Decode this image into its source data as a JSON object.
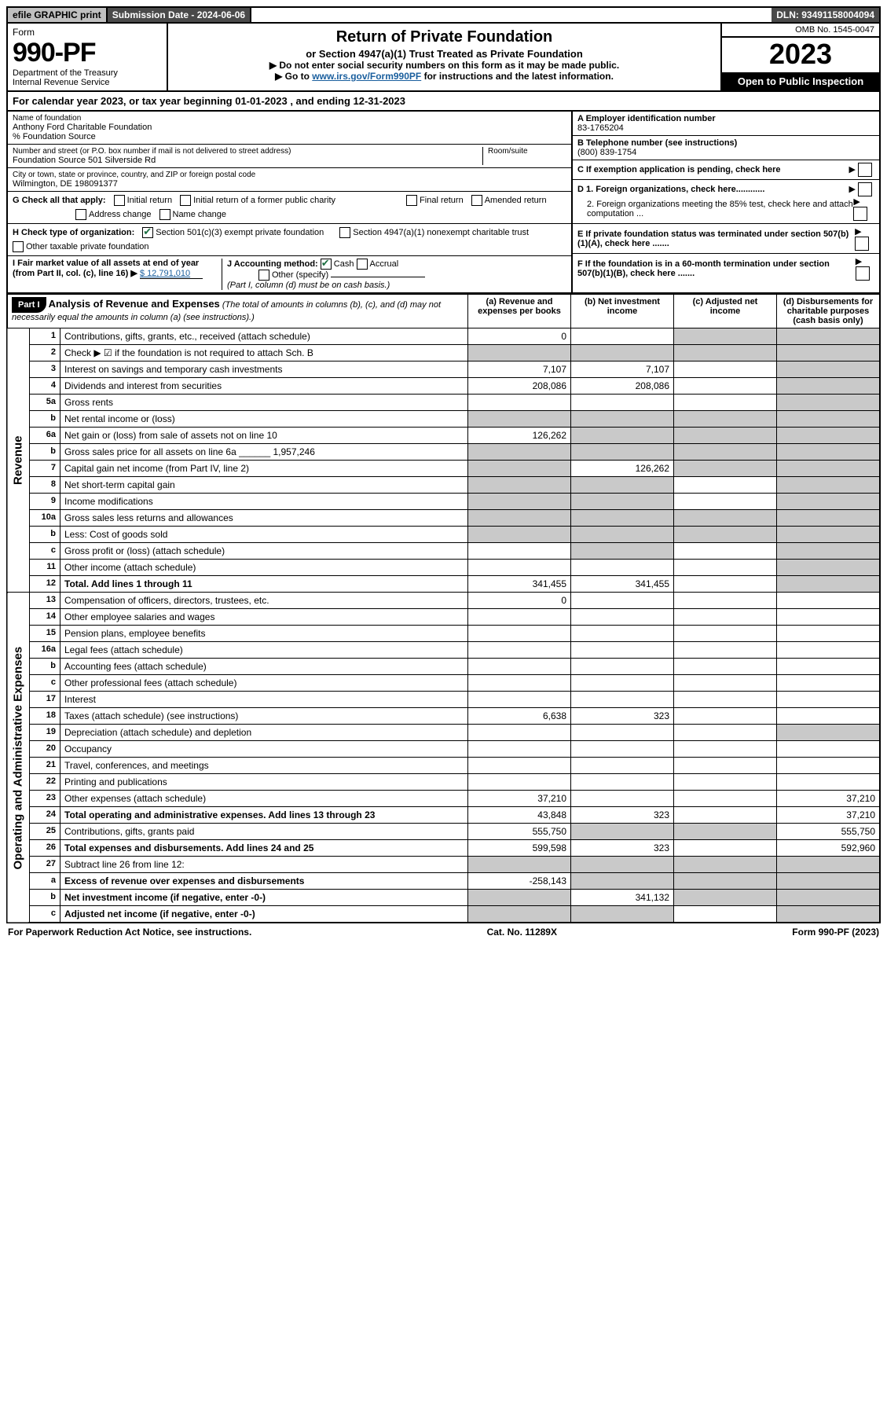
{
  "topbar": {
    "efile": "efile GRAPHIC print",
    "submission": "Submission Date - 2024-06-06",
    "dln": "DLN: 93491158004094"
  },
  "header": {
    "form_label": "Form",
    "form_no": "990-PF",
    "dept": "Department of the Treasury\nInternal Revenue Service",
    "title": "Return of Private Foundation",
    "subtitle": "or Section 4947(a)(1) Trust Treated as Private Foundation",
    "note1": "▶ Do not enter social security numbers on this form as it may be made public.",
    "note2_prefix": "▶ Go to ",
    "note2_link": "www.irs.gov/Form990PF",
    "note2_suffix": " for instructions and the latest information.",
    "omb": "OMB No. 1545-0047",
    "year": "2023",
    "open": "Open to Public Inspection"
  },
  "cal_year": "For calendar year 2023, or tax year beginning 01-01-2023                         , and ending 12-31-2023",
  "info": {
    "name_label": "Name of foundation",
    "name": "Anthony Ford Charitable Foundation",
    "care_of": "% Foundation Source",
    "street_label": "Number and street (or P.O. box number if mail is not delivered to street address)",
    "street": "Foundation Source 501 Silverside Rd",
    "room_label": "Room/suite",
    "city_label": "City or town, state or province, country, and ZIP or foreign postal code",
    "city": "Wilmington, DE  198091377",
    "ein_label": "A Employer identification number",
    "ein": "83-1765204",
    "phone_label": "B Telephone number (see instructions)",
    "phone": "(800) 839-1754",
    "c_label": "C If exemption application is pending, check here",
    "d1_label": "D 1. Foreign organizations, check here............",
    "d2_label": "2. Foreign organizations meeting the 85% test, check here and attach computation ...",
    "e_label": "E If private foundation status was terminated under section 507(b)(1)(A), check here .......",
    "f_label": "F If the foundation is in a 60-month termination under section 507(b)(1)(B), check here .......",
    "g_label": "G Check all that apply:",
    "g_opts": [
      "Initial return",
      "Initial return of a former public charity",
      "Final return",
      "Amended return",
      "Address change",
      "Name change"
    ],
    "h_label": "H Check type of organization:",
    "h_opt1": "Section 501(c)(3) exempt private foundation",
    "h_opt2a": "Section 4947(a)(1) nonexempt charitable trust",
    "h_opt2b": "Other taxable private foundation",
    "i_label": "I Fair market value of all assets at end of year (from Part II, col. (c), line 16) ▶",
    "i_value": "$  12,791,010",
    "j_label": "J Accounting method:",
    "j_opts": [
      "Cash",
      "Accrual",
      "Other (specify)"
    ],
    "j_note": "(Part I, column (d) must be on cash basis.)"
  },
  "part1": {
    "label": "Part I",
    "title": "Analysis of Revenue and Expenses",
    "title_note": "(The total of amounts in columns (b), (c), and (d) may not necessarily equal the amounts in column (a) (see instructions).)",
    "cols": {
      "a": "(a) Revenue and expenses per books",
      "b": "(b) Net investment income",
      "c": "(c) Adjusted net income",
      "d": "(d) Disbursements for charitable purposes (cash basis only)"
    }
  },
  "sidebars": {
    "revenue": "Revenue",
    "expenses": "Operating and Administrative Expenses"
  },
  "rows": [
    {
      "n": "1",
      "d": "Contributions, gifts, grants, etc., received (attach schedule)",
      "a": "0",
      "c_grey": true,
      "d_grey": true
    },
    {
      "n": "2",
      "d": "Check ▶ ☑ if the foundation is not required to attach Sch. B",
      "a_grey": true,
      "b_grey": true,
      "c_grey": true,
      "d_grey": true
    },
    {
      "n": "3",
      "d": "Interest on savings and temporary cash investments",
      "a": "7,107",
      "b": "7,107",
      "d_grey": true
    },
    {
      "n": "4",
      "d": "Dividends and interest from securities",
      "a": "208,086",
      "b": "208,086",
      "d_grey": true
    },
    {
      "n": "5a",
      "d": "Gross rents",
      "d_grey": true
    },
    {
      "n": "b",
      "d": "Net rental income or (loss)",
      "a_grey": true,
      "b_grey": true,
      "c_grey": true,
      "d_grey": true
    },
    {
      "n": "6a",
      "d": "Net gain or (loss) from sale of assets not on line 10",
      "a": "126,262",
      "b_grey": true,
      "c_grey": true,
      "d_grey": true
    },
    {
      "n": "b",
      "d": "Gross sales price for all assets on line 6a ______ 1,957,246",
      "a_grey": true,
      "b_grey": true,
      "c_grey": true,
      "d_grey": true
    },
    {
      "n": "7",
      "d": "Capital gain net income (from Part IV, line 2)",
      "a_grey": true,
      "b": "126,262",
      "c_grey": true,
      "d_grey": true
    },
    {
      "n": "8",
      "d": "Net short-term capital gain",
      "a_grey": true,
      "b_grey": true,
      "d_grey": true
    },
    {
      "n": "9",
      "d": "Income modifications",
      "a_grey": true,
      "b_grey": true,
      "d_grey": true
    },
    {
      "n": "10a",
      "d": "Gross sales less returns and allowances",
      "a_grey": true,
      "b_grey": true,
      "c_grey": true,
      "d_grey": true
    },
    {
      "n": "b",
      "d": "Less: Cost of goods sold",
      "a_grey": true,
      "b_grey": true,
      "c_grey": true,
      "d_grey": true
    },
    {
      "n": "c",
      "d": "Gross profit or (loss) (attach schedule)",
      "b_grey": true,
      "d_grey": true
    },
    {
      "n": "11",
      "d": "Other income (attach schedule)",
      "d_grey": true
    },
    {
      "n": "12",
      "d": "Total. Add lines 1 through 11",
      "bold": true,
      "a": "341,455",
      "b": "341,455",
      "d_grey": true
    },
    {
      "n": "13",
      "d": "Compensation of officers, directors, trustees, etc.",
      "a": "0"
    },
    {
      "n": "14",
      "d": "Other employee salaries and wages"
    },
    {
      "n": "15",
      "d": "Pension plans, employee benefits"
    },
    {
      "n": "16a",
      "d": "Legal fees (attach schedule)"
    },
    {
      "n": "b",
      "d": "Accounting fees (attach schedule)"
    },
    {
      "n": "c",
      "d": "Other professional fees (attach schedule)"
    },
    {
      "n": "17",
      "d": "Interest"
    },
    {
      "n": "18",
      "d": "Taxes (attach schedule) (see instructions)",
      "a": "6,638",
      "b": "323"
    },
    {
      "n": "19",
      "d": "Depreciation (attach schedule) and depletion",
      "d_grey": true
    },
    {
      "n": "20",
      "d": "Occupancy"
    },
    {
      "n": "21",
      "d": "Travel, conferences, and meetings"
    },
    {
      "n": "22",
      "d": "Printing and publications"
    },
    {
      "n": "23",
      "d": "Other expenses (attach schedule)",
      "a": "37,210",
      "dd": "37,210"
    },
    {
      "n": "24",
      "d": "Total operating and administrative expenses. Add lines 13 through 23",
      "bold": true,
      "a": "43,848",
      "b": "323",
      "dd": "37,210"
    },
    {
      "n": "25",
      "d": "Contributions, gifts, grants paid",
      "a": "555,750",
      "b_grey": true,
      "c_grey": true,
      "dd": "555,750"
    },
    {
      "n": "26",
      "d": "Total expenses and disbursements. Add lines 24 and 25",
      "bold": true,
      "a": "599,598",
      "b": "323",
      "dd": "592,960"
    },
    {
      "n": "27",
      "d": "Subtract line 26 from line 12:",
      "a_grey": true,
      "b_grey": true,
      "c_grey": true,
      "d_grey": true
    },
    {
      "n": "a",
      "d": "Excess of revenue over expenses and disbursements",
      "bold": true,
      "a": "-258,143",
      "b_grey": true,
      "c_grey": true,
      "d_grey": true
    },
    {
      "n": "b",
      "d": "Net investment income (if negative, enter -0-)",
      "bold": true,
      "a_grey": true,
      "b": "341,132",
      "c_grey": true,
      "d_grey": true
    },
    {
      "n": "c",
      "d": "Adjusted net income (if negative, enter -0-)",
      "bold": true,
      "a_grey": true,
      "b_grey": true,
      "d_grey": true
    }
  ],
  "footer": {
    "left": "For Paperwork Reduction Act Notice, see instructions.",
    "mid": "Cat. No. 11289X",
    "right": "Form 990-PF (2023)"
  }
}
